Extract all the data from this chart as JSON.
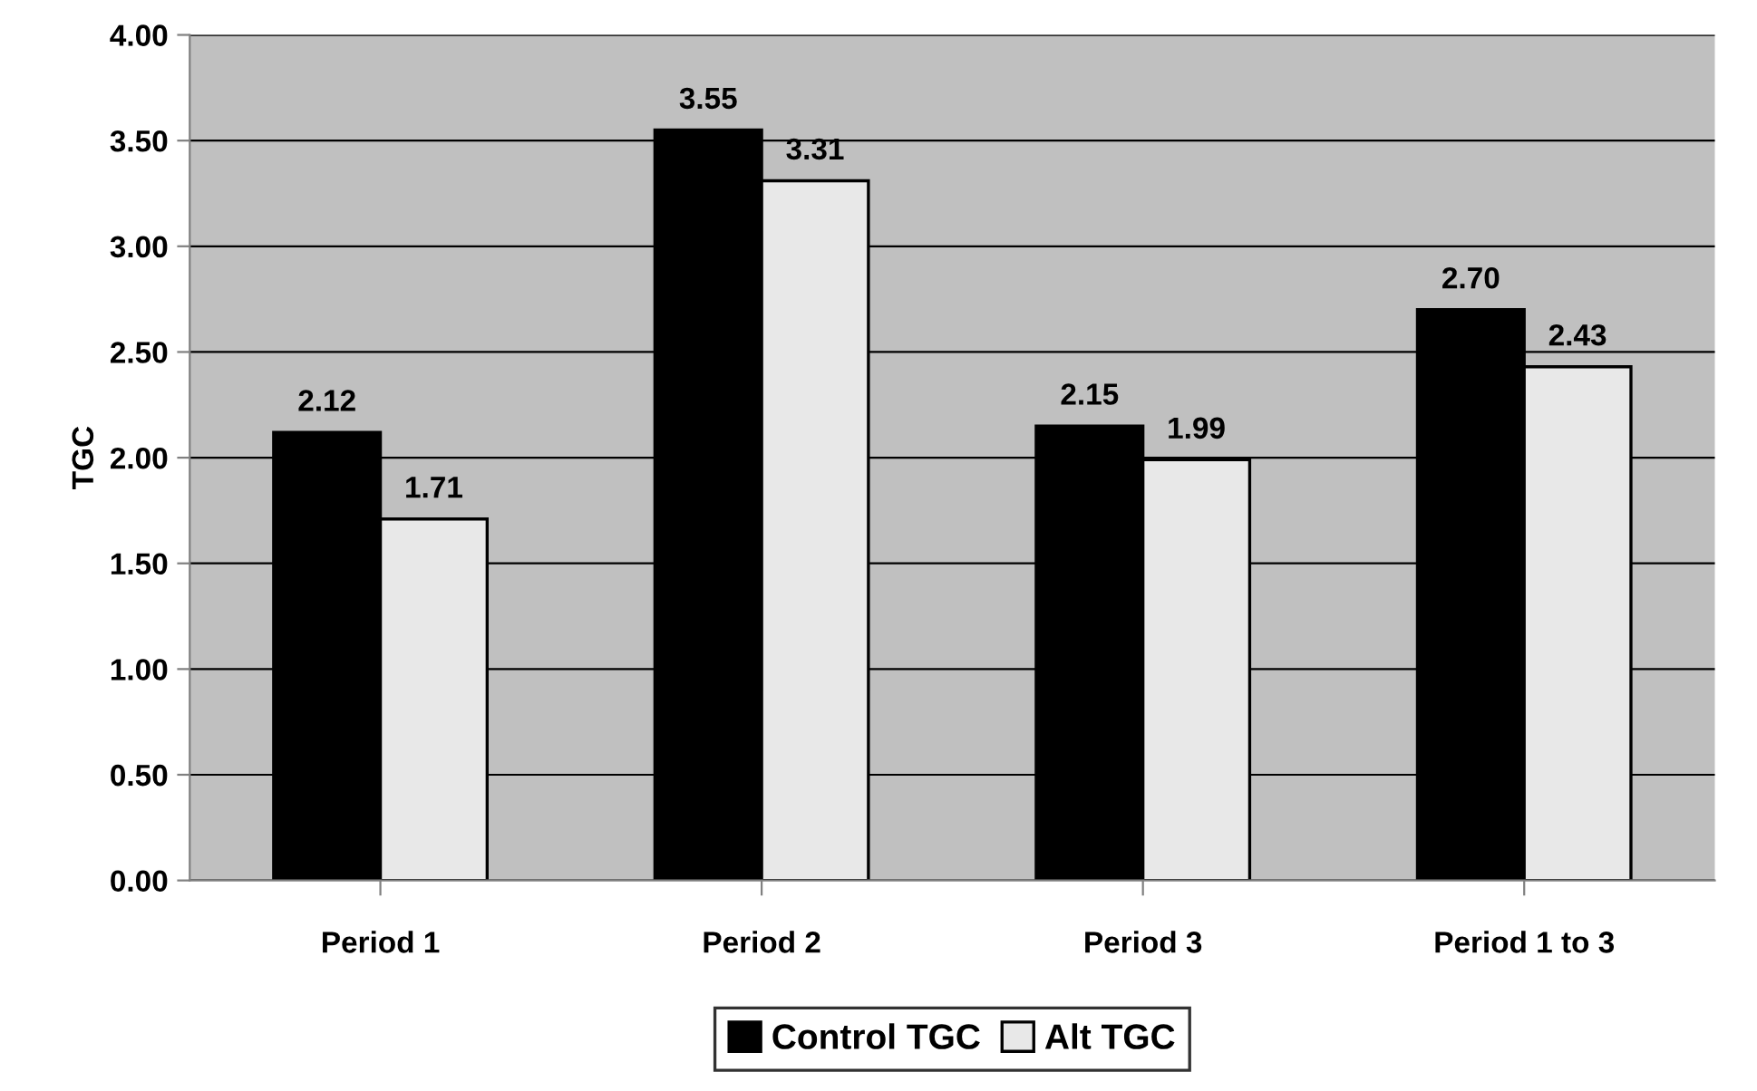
{
  "chart_data": {
    "type": "bar",
    "ylabel": "TGC",
    "categories": [
      "Period 1",
      "Period 2",
      "Period 3",
      "Period 1 to 3"
    ],
    "series": [
      {
        "name": "Control TGC",
        "color": "#000000",
        "values": [
          2.12,
          3.55,
          2.15,
          2.7
        ],
        "value_labels": [
          "2.12",
          "3.55",
          "2.15",
          "2.70"
        ]
      },
      {
        "name": "Alt TGC",
        "color": "#e8e8e8",
        "values": [
          1.71,
          3.31,
          1.99,
          2.43
        ],
        "value_labels": [
          "1.71",
          "3.31",
          "1.99",
          "2.43"
        ]
      }
    ],
    "ylim": [
      0,
      4
    ],
    "yticks": [
      {
        "value": 0,
        "label": "0.00"
      },
      {
        "value": 0.5,
        "label": "0.50"
      },
      {
        "value": 1,
        "label": "1.00"
      },
      {
        "value": 1.5,
        "label": "1.50"
      },
      {
        "value": 2,
        "label": "2.00"
      },
      {
        "value": 2.5,
        "label": "2.50"
      },
      {
        "value": 3,
        "label": "3.00"
      },
      {
        "value": 3.5,
        "label": "3.50"
      },
      {
        "value": 4,
        "label": "4.00"
      }
    ],
    "grid": "y",
    "legend": "bottom"
  }
}
